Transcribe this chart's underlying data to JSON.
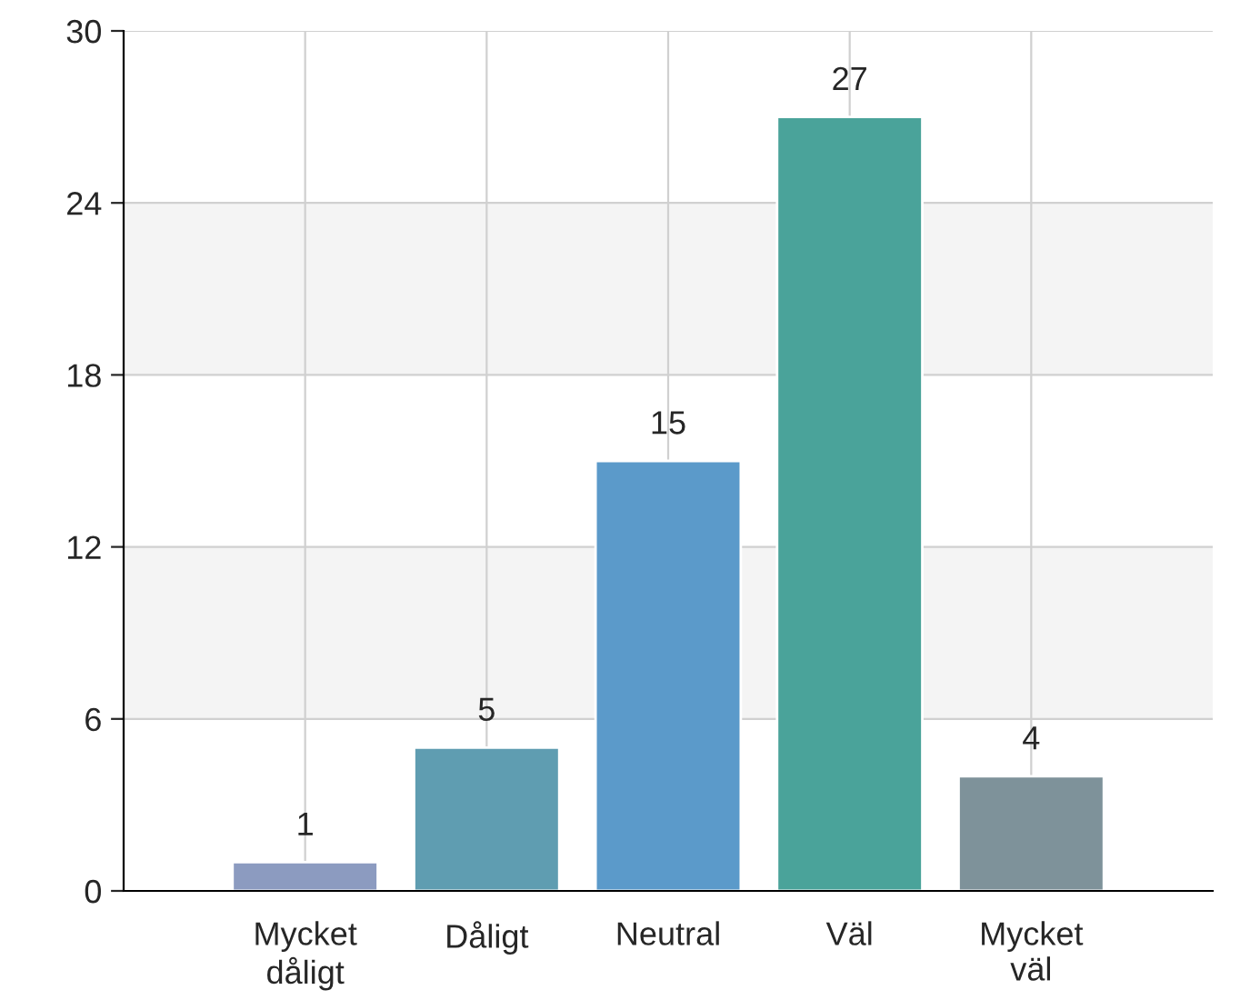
{
  "chart_data": {
    "type": "bar",
    "categories": [
      "Mycket\ndåligt",
      "Dåligt",
      "Neutral",
      "Väl",
      "Mycket\nväl"
    ],
    "values": [
      1,
      5,
      15,
      27,
      4
    ],
    "colors": [
      "#8c9bc0",
      "#5f9db1",
      "#5b9aca",
      "#4aa39a",
      "#7e929a"
    ],
    "ylim": [
      0,
      30
    ],
    "yticks": [
      0,
      6,
      12,
      18,
      24,
      30
    ],
    "grid": true,
    "data_labels": true,
    "bands": [
      {
        "axis": "y",
        "from": 6,
        "to": 12,
        "color": "#f4f4f4"
      },
      {
        "axis": "y",
        "from": 18,
        "to": 24,
        "color": "#f4f4f4"
      }
    ]
  }
}
